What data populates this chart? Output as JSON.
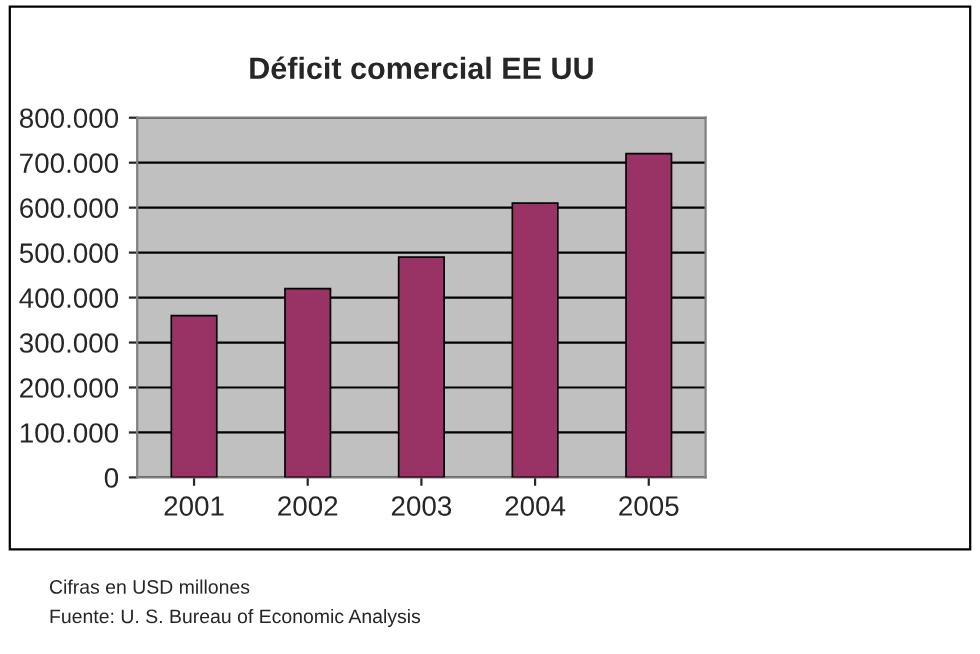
{
  "chart_data": {
    "type": "bar",
    "title": "Déficit comercial EE UU",
    "categories": [
      "2001",
      "2002",
      "2003",
      "2004",
      "2005"
    ],
    "values": [
      360000,
      420000,
      490000,
      610000,
      720000
    ],
    "color": "#993366",
    "ylim": [
      0,
      800000
    ],
    "yticks": [
      0,
      {
        "value": 100000,
        "label": "100.000"
      },
      {
        "value": 200000,
        "label": "200.000"
      },
      {
        "value": 300000,
        "label": "300.000"
      },
      {
        "value": 400000,
        "label": "400.000"
      },
      {
        "value": 500000,
        "label": "500.000"
      },
      {
        "value": 600000,
        "label": "600.000"
      },
      {
        "value": 700000,
        "label": "700.000"
      },
      {
        "value": 800000,
        "label": "800.000"
      }
    ],
    "grid": "y",
    "annotations": [
      "Cifras en USD millones",
      "Fuente: U. S. Bureau of Economic Analysis"
    ]
  }
}
